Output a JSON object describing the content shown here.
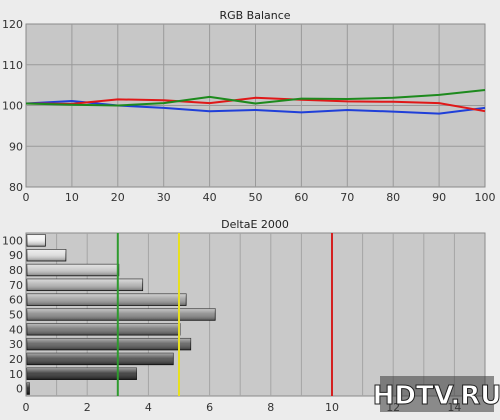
{
  "chart_data": [
    {
      "type": "line",
      "title": "RGB Balance",
      "xlabel": "",
      "ylabel": "",
      "x": [
        0,
        10,
        20,
        30,
        40,
        50,
        60,
        70,
        80,
        90,
        100
      ],
      "xlim": [
        0,
        100
      ],
      "ylim": [
        80,
        120
      ],
      "xticks": [
        0,
        10,
        20,
        30,
        40,
        50,
        60,
        70,
        80,
        90,
        100
      ],
      "yticks": [
        80,
        90,
        100,
        110,
        120
      ],
      "grid": true,
      "series": [
        {
          "color": "#1f3fd9",
          "values": [
            100.5,
            101.1,
            100.0,
            99.4,
            98.6,
            98.9,
            98.3,
            98.9,
            98.5,
            98.0,
            99.4
          ]
        },
        {
          "color": "#e01818",
          "values": [
            100.5,
            100.4,
            101.5,
            101.3,
            100.6,
            101.9,
            101.4,
            101.0,
            100.9,
            100.6,
            98.6
          ]
        },
        {
          "color": "#1d8a1d",
          "values": [
            100.5,
            100.2,
            100.0,
            100.6,
            102.1,
            100.5,
            101.7,
            101.6,
            101.9,
            102.6,
            103.8
          ]
        }
      ]
    },
    {
      "type": "bar",
      "orientation": "horizontal",
      "title": "DeltaE 2000",
      "categories": [
        "0",
        "10",
        "20",
        "30",
        "40",
        "50",
        "60",
        "70",
        "80",
        "90",
        "100"
      ],
      "values": [
        0.08,
        3.58,
        4.78,
        5.35,
        5.0,
        6.15,
        5.2,
        3.78,
        3.0,
        1.27,
        0.6
      ],
      "xlim": [
        0,
        15
      ],
      "xticks": [
        0,
        2,
        4,
        6,
        8,
        10,
        12,
        14
      ],
      "grid": true,
      "reference_lines": [
        {
          "value": 3,
          "color": "#2e9a2e"
        },
        {
          "value": 5,
          "color": "#e8e020"
        },
        {
          "value": 10,
          "color": "#d42020"
        }
      ]
    }
  ],
  "watermark": {
    "text": "HDTV.RU"
  }
}
